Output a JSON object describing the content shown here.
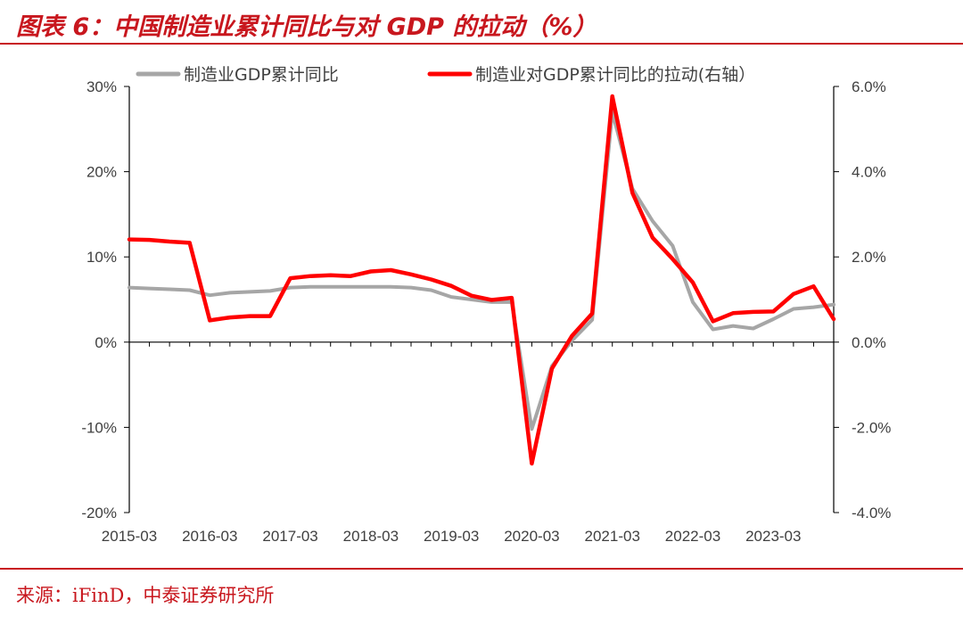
{
  "header": {
    "title": "图表 6：中国制造业累计同比与对 GDP 的拉动（%）"
  },
  "footer": {
    "source": "来源：iFinD，中泰证券研究所"
  },
  "colors": {
    "accent": "#c8171e",
    "series_gray": "#a6a6a6",
    "series_red": "#ff0000"
  },
  "chart_data": {
    "type": "line",
    "title": "中国制造业累计同比与对 GDP 的拉动（%）",
    "x": [
      "2015-03",
      "2015-06",
      "2015-09",
      "2015-12",
      "2016-03",
      "2016-06",
      "2016-09",
      "2016-12",
      "2017-03",
      "2017-06",
      "2017-09",
      "2017-12",
      "2018-03",
      "2018-06",
      "2018-09",
      "2018-12",
      "2019-03",
      "2019-06",
      "2019-09",
      "2019-12",
      "2020-03",
      "2020-06",
      "2020-09",
      "2020-12",
      "2021-03",
      "2021-06",
      "2021-09",
      "2021-12",
      "2022-03",
      "2022-06",
      "2022-09",
      "2022-12",
      "2023-03",
      "2023-06",
      "2023-09",
      "2023-12"
    ],
    "x_tick_labels": [
      "2015-03",
      "2016-03",
      "2017-03",
      "2018-03",
      "2019-03",
      "2020-03",
      "2021-03",
      "2022-03",
      "2023-03"
    ],
    "left_axis": {
      "ticks": [
        "30%",
        "20%",
        "10%",
        "0%",
        "-10%",
        "-20%"
      ],
      "ylim": [
        -20,
        30
      ]
    },
    "right_axis": {
      "ticks": [
        "6.0%",
        "4.0%",
        "2.0%",
        "0.0%",
        "-2.0%",
        "-4.0%"
      ],
      "ylim": [
        -4,
        6
      ]
    },
    "series": [
      {
        "name": "制造业GDP累计同比",
        "axis": "left",
        "values": [
          6.4,
          6.3,
          6.2,
          6.1,
          5.5,
          5.8,
          5.9,
          6.0,
          6.4,
          6.5,
          6.5,
          6.5,
          6.5,
          6.5,
          6.4,
          6.1,
          5.3,
          5.0,
          4.7,
          4.7,
          -10.2,
          -2.8,
          0.2,
          2.6,
          27.0,
          18.0,
          14.2,
          11.3,
          4.7,
          1.5,
          1.9,
          1.6,
          2.7,
          3.9,
          4.1,
          4.4
        ]
      },
      {
        "name": "制造业对GDP累计同比的拉动(右轴）",
        "axis": "right",
        "values": [
          2.41,
          2.4,
          2.36,
          2.33,
          0.51,
          0.58,
          0.61,
          0.61,
          1.5,
          1.55,
          1.57,
          1.55,
          1.66,
          1.69,
          1.59,
          1.47,
          1.32,
          1.09,
          0.99,
          1.04,
          -2.85,
          -0.62,
          0.15,
          0.67,
          5.77,
          3.5,
          2.45,
          1.95,
          1.4,
          0.49,
          0.68,
          0.71,
          0.72,
          1.13,
          1.31,
          0.54
        ]
      }
    ]
  }
}
